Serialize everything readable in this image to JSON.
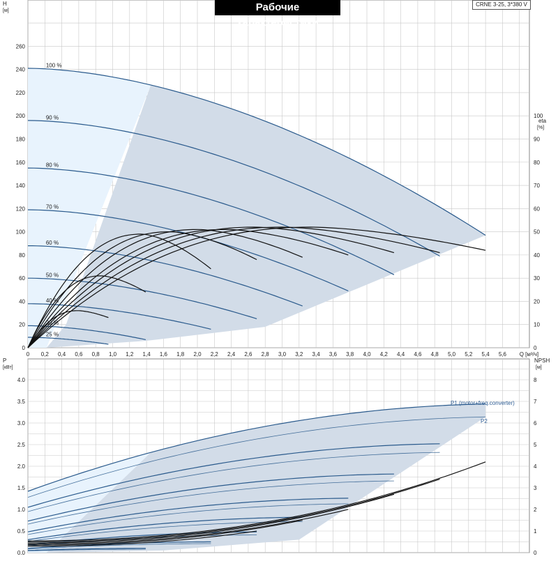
{
  "title": "Рабочие характеристики",
  "model": "CRNE 3-25, 3*380 V",
  "colors": {
    "grid": "#c8c8c8",
    "shade": "#d2dce8",
    "shade_light": "#e8f3fd",
    "curve_blue": "#2a5a8c",
    "curve_black": "#111111",
    "label_blue": "#2f5e95"
  },
  "chart_data": [
    {
      "type": "line",
      "panel": "head-efficiency",
      "y_left_label": "H",
      "y_left_unit": "[м]",
      "y_right_label": "eta",
      "y_right_unit": "[%]",
      "x_label": "Q",
      "x_unit": "[м³/ч]",
      "xlim": [
        0,
        6.0
      ],
      "ylim_left": [
        0,
        280
      ],
      "ylim_right": [
        0,
        140
      ],
      "x_ticks": [
        "0",
        "0,2",
        "0,4",
        "0,6",
        "0,8",
        "1,0",
        "1,2",
        "1,4",
        "1,6",
        "1,8",
        "2,0",
        "2,2",
        "2,4",
        "2,6",
        "2,8",
        "3,0",
        "3,2",
        "3,4",
        "3,6",
        "3,8",
        "4,0",
        "4,2",
        "4,4",
        "4,6",
        "4,8",
        "5,0",
        "5,2",
        "5,4",
        "5,6",
        "Q [м³/ч]"
      ],
      "y_left_ticks": [
        "0",
        "20",
        "40",
        "60",
        "80",
        "100",
        "120",
        "140",
        "160",
        "180",
        "200",
        "220",
        "240",
        "260"
      ],
      "y_right_ticks": [
        "0",
        "10",
        "20",
        "30",
        "40",
        "50",
        "60",
        "70",
        "80",
        "90",
        "100"
      ],
      "grid": true,
      "head_series": [
        {
          "name": "100 %",
          "q_max": 5.4,
          "h0": 241,
          "h_end": 97
        },
        {
          "name": "90 %",
          "q_max": 4.86,
          "h0": 196,
          "h_end": 79
        },
        {
          "name": "80 %",
          "q_max": 4.32,
          "h0": 155,
          "h_end": 63
        },
        {
          "name": "70 %",
          "q_max": 3.78,
          "h0": 119,
          "h_end": 49
        },
        {
          "name": "60 %",
          "q_max": 3.24,
          "h0": 88,
          "h_end": 36
        },
        {
          "name": "50 %",
          "q_max": 2.7,
          "h0": 60,
          "h_end": 25
        },
        {
          "name": "40 %",
          "q_max": 2.16,
          "h0": 38,
          "h_end": 16
        },
        {
          "name": "30 %",
          "q_max": 1.39,
          "h0": 19,
          "h_end": 7
        },
        {
          "name": "25 %",
          "q_max": 0.95,
          "h0": 9,
          "h_end": 3
        }
      ],
      "efficiency_series": [
        {
          "q_max": 5.4,
          "eta_peak": 52,
          "eta_end": 42
        },
        {
          "q_max": 4.86,
          "eta_peak": 52,
          "eta_end": 41
        },
        {
          "q_max": 4.32,
          "eta_peak": 52,
          "eta_end": 41
        },
        {
          "q_max": 3.78,
          "eta_peak": 51,
          "eta_end": 40
        },
        {
          "q_max": 3.24,
          "eta_peak": 51,
          "eta_end": 39
        },
        {
          "q_max": 2.7,
          "eta_peak": 50,
          "eta_end": 38
        },
        {
          "q_max": 2.16,
          "eta_peak": 49,
          "eta_end": 34
        },
        {
          "q_max": 1.39,
          "eta_peak": 31,
          "eta_end": 24
        },
        {
          "q_max": 0.95,
          "eta_peak": 16,
          "eta_end": 13
        }
      ]
    },
    {
      "type": "line",
      "panel": "power-npsh",
      "y_left_label": "P",
      "y_left_unit": "[кВт]",
      "y_right_label": "NPSH",
      "y_right_unit": "[м]",
      "xlim": [
        0,
        6.0
      ],
      "ylim_left": [
        0,
        4.0
      ],
      "ylim_right": [
        0,
        8
      ],
      "y_left_ticks": [
        "0.0",
        "0.5",
        "1.0",
        "1.5",
        "2.0",
        "2.5",
        "3.0",
        "3.5",
        "4.0"
      ],
      "y_right_ticks": [
        "0",
        "1",
        "2",
        "3",
        "4",
        "5",
        "6",
        "7",
        "8"
      ],
      "grid": true,
      "series_labels": [
        "P1 (motor+freq.converter)",
        "P2"
      ],
      "p1_series": [
        {
          "q_max": 5.4,
          "p0": 1.42,
          "p_end": 3.44
        },
        {
          "q_max": 4.86,
          "p0": 1.05,
          "p_end": 2.52
        },
        {
          "q_max": 4.32,
          "p0": 0.73,
          "p_end": 1.82
        },
        {
          "q_max": 3.78,
          "p0": 0.48,
          "p_end": 1.26
        },
        {
          "q_max": 3.24,
          "p0": 0.3,
          "p_end": 0.82
        },
        {
          "q_max": 2.7,
          "p0": 0.18,
          "p_end": 0.48
        },
        {
          "q_max": 2.16,
          "p0": 0.1,
          "p_end": 0.25
        },
        {
          "q_max": 1.39,
          "p0": 0.05,
          "p_end": 0.1
        }
      ],
      "p2_series": [
        {
          "q_max": 5.4,
          "p0": 1.28,
          "p_end": 3.14
        },
        {
          "q_max": 4.86,
          "p0": 0.95,
          "p_end": 2.32
        },
        {
          "q_max": 4.32,
          "p0": 0.66,
          "p_end": 1.66
        },
        {
          "q_max": 3.78,
          "p0": 0.42,
          "p_end": 1.13
        },
        {
          "q_max": 3.24,
          "p0": 0.26,
          "p_end": 0.72
        },
        {
          "q_max": 2.7,
          "p0": 0.15,
          "p_end": 0.41
        },
        {
          "q_max": 2.16,
          "p0": 0.08,
          "p_end": 0.21
        },
        {
          "q_max": 1.39,
          "p0": 0.04,
          "p_end": 0.08
        }
      ],
      "npsh_series": [
        {
          "q_max": 5.4,
          "npsh0": 0.55,
          "npsh_end": 4.2
        },
        {
          "q_max": 4.86,
          "npsh0": 0.5,
          "npsh_end": 3.4
        },
        {
          "q_max": 4.32,
          "npsh0": 0.45,
          "npsh_end": 2.7
        },
        {
          "q_max": 3.78,
          "npsh0": 0.4,
          "npsh_end": 2.0
        },
        {
          "q_max": 3.24,
          "npsh0": 0.35,
          "npsh_end": 1.5
        },
        {
          "q_max": 2.7,
          "npsh0": 0.3,
          "npsh_end": 1.0
        }
      ]
    }
  ]
}
